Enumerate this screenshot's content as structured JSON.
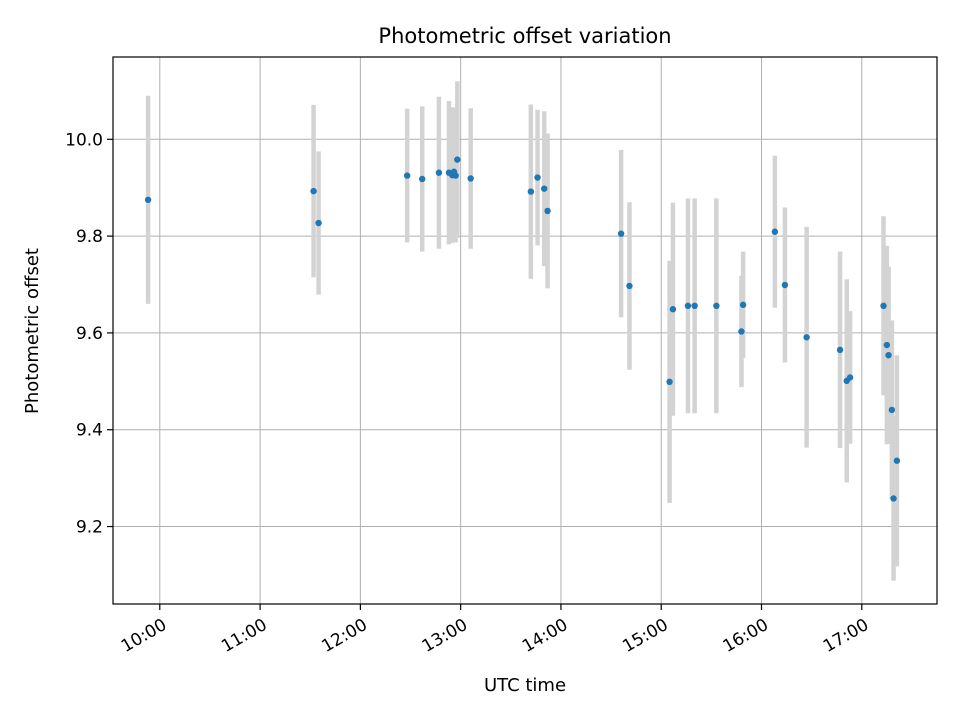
{
  "chart_data": {
    "type": "scatter",
    "title": "Photometric offset variation",
    "xlabel": "UTC time",
    "ylabel": "Photometric offset",
    "x_ticks": [
      "10:00",
      "11:00",
      "12:00",
      "13:00",
      "14:00",
      "15:00",
      "16:00",
      "17:00"
    ],
    "y_ticks": [
      "9.2",
      "9.4",
      "9.6",
      "9.8",
      "10.0"
    ],
    "xlim": [
      "09:32",
      "17:45"
    ],
    "ylim": [
      9.04,
      10.17
    ],
    "grid": true,
    "colors": {
      "point": "#1f77b4",
      "errorbar": "#d3d3d3",
      "grid": "#b0b0b0"
    },
    "points": [
      {
        "x": "09:53",
        "y": 9.875,
        "err": 0.215
      },
      {
        "x": "11:32",
        "y": 9.893,
        "err": 0.178
      },
      {
        "x": "11:35",
        "y": 9.827,
        "err": 0.148
      },
      {
        "x": "12:28",
        "y": 9.925,
        "err": 0.138
      },
      {
        "x": "12:37",
        "y": 9.918,
        "err": 0.15
      },
      {
        "x": "12:47",
        "y": 9.931,
        "err": 0.157
      },
      {
        "x": "12:53",
        "y": 9.931,
        "err": 0.148
      },
      {
        "x": "12:55",
        "y": 9.926,
        "err": 0.14
      },
      {
        "x": "12:56",
        "y": 9.933,
        "err": 0.133
      },
      {
        "x": "12:57",
        "y": 9.925,
        "err": 0.138
      },
      {
        "x": "12:58",
        "y": 9.958,
        "err": 0.162
      },
      {
        "x": "13:06",
        "y": 9.919,
        "err": 0.145
      },
      {
        "x": "13:42",
        "y": 9.892,
        "err": 0.18
      },
      {
        "x": "13:46",
        "y": 9.921,
        "err": 0.14
      },
      {
        "x": "13:50",
        "y": 9.898,
        "err": 0.16
      },
      {
        "x": "13:52",
        "y": 9.852,
        "err": 0.16
      },
      {
        "x": "14:36",
        "y": 9.805,
        "err": 0.173
      },
      {
        "x": "14:41",
        "y": 9.697,
        "err": 0.173
      },
      {
        "x": "15:05",
        "y": 9.499,
        "err": 0.25
      },
      {
        "x": "15:07",
        "y": 9.649,
        "err": 0.22
      },
      {
        "x": "15:16",
        "y": 9.656,
        "err": 0.222
      },
      {
        "x": "15:20",
        "y": 9.656,
        "err": 0.222
      },
      {
        "x": "15:33",
        "y": 9.656,
        "err": 0.222
      },
      {
        "x": "15:48",
        "y": 9.603,
        "err": 0.115
      },
      {
        "x": "15:49",
        "y": 9.658,
        "err": 0.11
      },
      {
        "x": "16:08",
        "y": 9.809,
        "err": 0.157
      },
      {
        "x": "16:14",
        "y": 9.699,
        "err": 0.16
      },
      {
        "x": "16:27",
        "y": 9.591,
        "err": 0.228
      },
      {
        "x": "16:47",
        "y": 9.565,
        "err": 0.203
      },
      {
        "x": "16:51",
        "y": 9.501,
        "err": 0.21
      },
      {
        "x": "16:53",
        "y": 9.508,
        "err": 0.137
      },
      {
        "x": "17:13",
        "y": 9.656,
        "err": 0.185
      },
      {
        "x": "17:15",
        "y": 9.575,
        "err": 0.205
      },
      {
        "x": "17:16",
        "y": 9.554,
        "err": 0.183
      },
      {
        "x": "17:18",
        "y": 9.441,
        "err": 0.185
      },
      {
        "x": "17:19",
        "y": 9.258,
        "err": 0.17
      },
      {
        "x": "17:21",
        "y": 9.336,
        "err": 0.218
      }
    ]
  }
}
